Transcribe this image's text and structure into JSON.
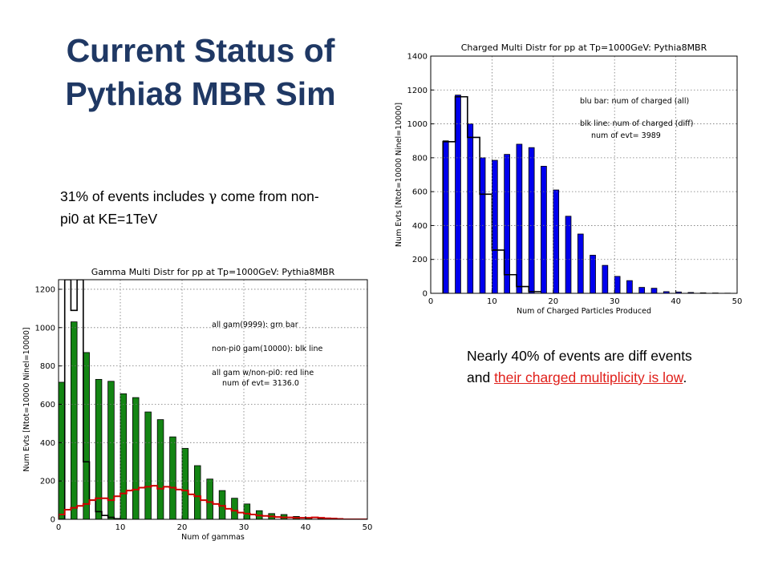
{
  "slide": {
    "title_line1": "Current Status of",
    "title_line2": "Pythia8 MBR Sim",
    "note1_pre": "31% of events includes ",
    "note1_gamma": "γ",
    "note1_post": " come from non-pi0 at KE=1TeV",
    "note2_pre": "Nearly 40% of events are diff events and ",
    "note2_red": "their charged multiplicity is low",
    "note2_post": "."
  },
  "chart_data": [
    {
      "type": "bar",
      "title": "Gamma Multi Distr for pp at Tp=1000GeV: Pythia8MBR",
      "xlabel": "Num of gammas",
      "ylabel": "Num Evts [Ntot=10000 Ninel=10000]",
      "xlim": [
        0,
        50
      ],
      "ylim": [
        0,
        1250
      ],
      "xticks": [
        0,
        10,
        20,
        30,
        40,
        50
      ],
      "yticks": [
        0,
        200,
        400,
        600,
        800,
        1000,
        1200
      ],
      "grid": true,
      "annotations": [
        "all gam(9999): grn bar",
        "non-pi0 gam(10000): blk line",
        "all gam w/non-pi0: red line",
        "num of evt= 3136.0"
      ],
      "colors": {
        "bars": "#138513",
        "black_line": "#000000",
        "red_line": "#cc0000"
      },
      "series": [
        {
          "style": "bars",
          "x": [
            0,
            2,
            4,
            6,
            8,
            10,
            12,
            14,
            16,
            18,
            20,
            22,
            24,
            26,
            28,
            30,
            32,
            34,
            36,
            38,
            40,
            42
          ],
          "values": [
            715,
            1030,
            870,
            730,
            720,
            655,
            635,
            560,
            520,
            430,
            370,
            280,
            210,
            150,
            110,
            80,
            45,
            30,
            25,
            15,
            8,
            5
          ]
        },
        {
          "style": "step",
          "x": [
            0,
            1,
            2,
            3,
            4,
            5,
            6,
            7,
            8,
            9,
            10
          ],
          "values": [
            0,
            1250,
            1090,
            1250,
            300,
            100,
            40,
            20,
            10,
            3,
            0
          ]
        },
        {
          "style": "step",
          "x": [
            0,
            1,
            2,
            3,
            4,
            5,
            6,
            7,
            8,
            9,
            10,
            11,
            12,
            13,
            14,
            15,
            16,
            17,
            18,
            19,
            20,
            21,
            22,
            23,
            24,
            25,
            26,
            27,
            28,
            29,
            30,
            31,
            32,
            33,
            34,
            35,
            36,
            37,
            38,
            39,
            40,
            41,
            42,
            43,
            44,
            45,
            46,
            47,
            48,
            49
          ],
          "values": [
            25,
            50,
            60,
            70,
            80,
            100,
            110,
            110,
            100,
            120,
            135,
            150,
            155,
            165,
            170,
            175,
            160,
            170,
            165,
            155,
            150,
            130,
            120,
            100,
            90,
            80,
            70,
            55,
            45,
            35,
            30,
            25,
            20,
            18,
            15,
            12,
            10,
            10,
            8,
            8,
            8,
            10,
            8,
            5,
            4,
            2,
            0,
            0,
            0,
            0
          ]
        }
      ]
    },
    {
      "type": "bar",
      "title": "Charged Multi Distr for pp at Tp=1000GeV: Pythia8MBR",
      "xlabel": "Num of Charged Particles Produced",
      "ylabel": "Num Evts [Ntot=10000 Ninel=10000]",
      "xlim": [
        0,
        50
      ],
      "ylim": [
        0,
        1400
      ],
      "xticks": [
        0,
        10,
        20,
        30,
        40,
        50
      ],
      "yticks": [
        0,
        200,
        400,
        600,
        800,
        1000,
        1200,
        1400
      ],
      "grid": true,
      "annotations": [
        "blu bar: num of charged (all)",
        "blk line: num of charged (diff)",
        "num of evt= 3989"
      ],
      "colors": {
        "bars": "#0000ee",
        "black_line": "#000000"
      },
      "series": [
        {
          "style": "bars",
          "x": [
            2,
            4,
            6,
            8,
            10,
            12,
            14,
            16,
            18,
            20,
            22,
            24,
            26,
            28,
            30,
            32,
            34,
            36,
            38,
            40,
            42,
            44,
            46,
            48
          ],
          "values": [
            900,
            1170,
            1000,
            800,
            785,
            820,
            880,
            860,
            750,
            610,
            455,
            350,
            225,
            165,
            100,
            75,
            35,
            30,
            10,
            8,
            5,
            3,
            2,
            1
          ]
        },
        {
          "style": "step",
          "x": [
            2,
            4,
            6,
            8,
            10,
            12,
            14,
            16
          ],
          "values": [
            895,
            1160,
            920,
            585,
            255,
            110,
            40,
            10
          ]
        }
      ]
    }
  ]
}
